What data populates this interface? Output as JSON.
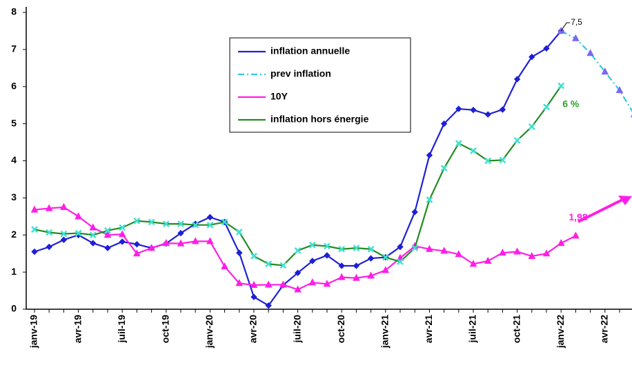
{
  "chart_data": {
    "type": "line",
    "categories": [
      "janv-19",
      null,
      null,
      "avr-19",
      null,
      null,
      "juil-19",
      null,
      null,
      "oct-19",
      null,
      null,
      "janv-20",
      null,
      null,
      "avr-20",
      null,
      null,
      "juil-20",
      null,
      null,
      "oct-20",
      null,
      null,
      "janv-21",
      null,
      null,
      "avr-21",
      null,
      null,
      "juil-21",
      null,
      null,
      "oct-21",
      null,
      null,
      "janv-22",
      null,
      null,
      "avr-22",
      null,
      null
    ],
    "series": [
      {
        "name": "inflation annuelle",
        "color": "#1f1fd6",
        "marker": "diamond",
        "dash": false,
        "values": [
          1.55,
          1.68,
          1.87,
          2.0,
          1.78,
          1.65,
          1.82,
          1.75,
          1.65,
          1.77,
          2.05,
          2.3,
          2.48,
          2.35,
          1.52,
          0.33,
          0.1,
          0.65,
          0.98,
          1.3,
          1.45,
          1.17,
          1.17,
          1.37,
          1.4,
          1.68,
          2.62,
          4.15,
          5.0,
          5.4,
          5.37,
          5.25,
          5.38,
          6.2,
          6.8,
          7.03,
          7.5,
          null,
          null,
          null,
          null,
          null
        ]
      },
      {
        "name": "prev inflation",
        "color": "#33c8e0",
        "marker": "triangle",
        "marker_color": "#7b68ee",
        "dash": true,
        "values": [
          null,
          null,
          null,
          null,
          null,
          null,
          null,
          null,
          null,
          null,
          null,
          null,
          null,
          null,
          null,
          null,
          null,
          null,
          null,
          null,
          null,
          null,
          null,
          null,
          null,
          null,
          null,
          null,
          null,
          null,
          null,
          null,
          null,
          null,
          null,
          null,
          7.5,
          7.3,
          6.9,
          6.4,
          5.9,
          5.25
        ]
      },
      {
        "name": "10Y",
        "color": "#ff1ee6",
        "marker": "triangle",
        "dash": false,
        "values": [
          2.68,
          2.72,
          2.75,
          2.5,
          2.2,
          2.0,
          2.02,
          1.5,
          1.65,
          1.78,
          1.77,
          1.83,
          1.83,
          1.15,
          0.7,
          0.65,
          0.66,
          0.66,
          0.53,
          0.72,
          0.68,
          0.86,
          0.84,
          0.9,
          1.05,
          1.38,
          1.7,
          1.62,
          1.57,
          1.48,
          1.22,
          1.3,
          1.52,
          1.55,
          1.43,
          1.5,
          1.78,
          1.98,
          null,
          null,
          null,
          null
        ]
      },
      {
        "name": "inflation hors énergie",
        "color": "#228b22",
        "marker": "cross",
        "marker_color": "#40e0d0",
        "dash": false,
        "values": [
          2.15,
          2.07,
          2.03,
          2.05,
          2.0,
          2.12,
          2.2,
          2.38,
          2.35,
          2.3,
          2.3,
          2.27,
          2.27,
          2.35,
          2.08,
          1.43,
          1.22,
          1.18,
          1.58,
          1.73,
          1.7,
          1.62,
          1.65,
          1.62,
          1.4,
          1.28,
          1.65,
          2.95,
          3.8,
          4.47,
          4.27,
          4.0,
          4.02,
          4.55,
          4.92,
          5.45,
          6.02,
          null,
          null,
          null,
          null,
          null
        ]
      }
    ],
    "annotations": [
      {
        "text": "7,5",
        "series": 0,
        "index": 36,
        "value": 7.5
      },
      {
        "text": "6 %",
        "series": 3,
        "index": 36,
        "value": 6
      },
      {
        "text": "1,98",
        "series": 2,
        "index": 37,
        "value": 1.98
      }
    ],
    "ylim": [
      0,
      8
    ],
    "yticks": [
      0,
      1,
      2,
      3,
      4,
      5,
      6,
      7,
      8
    ],
    "grid": false,
    "legend": "top center"
  }
}
